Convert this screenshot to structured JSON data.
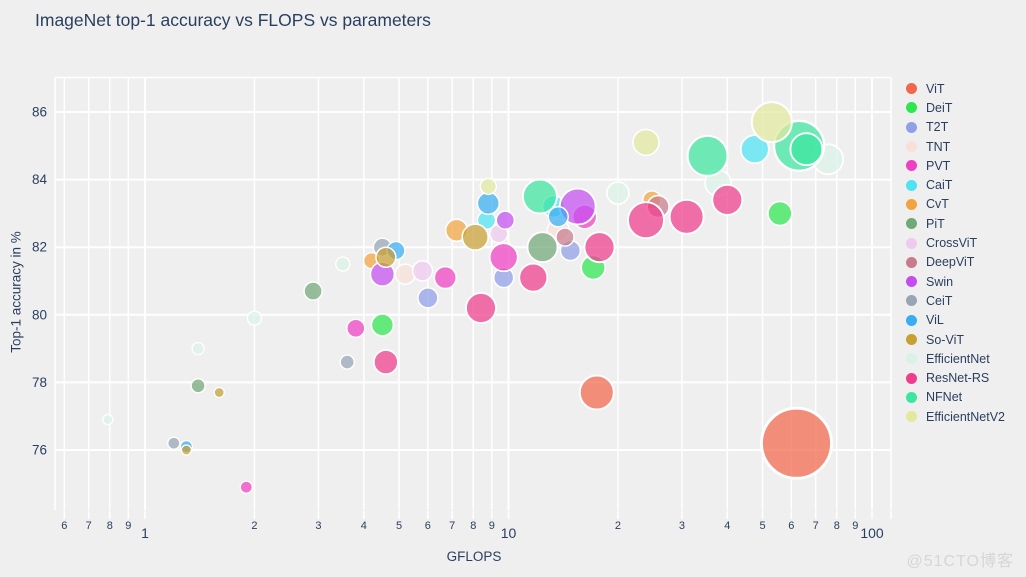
{
  "watermark": {
    "text": "@51CTO博客"
  },
  "chart_data": {
    "type": "scatter",
    "subtype": "bubble",
    "title": "ImageNet top-1 accuracy vs FLOPS vs parameters",
    "xlabel": "GFLOPS",
    "ylabel": "Top-1 accuracy in %",
    "x_scale": "log",
    "grid": true,
    "legend_position": "right",
    "x_tick_values": [
      0.6,
      0.7,
      0.8,
      0.9,
      1,
      2,
      3,
      4,
      5,
      6,
      7,
      8,
      9,
      10,
      20,
      30,
      40,
      50,
      60,
      70,
      80,
      90,
      100
    ],
    "x_tick_labels": [
      "6",
      "7",
      "8",
      "9",
      "1",
      "2",
      "3",
      "4",
      "5",
      "6",
      "7",
      "8",
      "9",
      "10",
      "2",
      "3",
      "4",
      "5",
      "6",
      "7",
      "8",
      "9",
      "100"
    ],
    "x_major_values": [
      1,
      10,
      100
    ],
    "y_tick_values": [
      76,
      78,
      80,
      82,
      84,
      86
    ],
    "x_range": [
      0.56,
      110
    ],
    "y_range": [
      74.2,
      87.1
    ],
    "series": [
      {
        "name": "ViT",
        "color": "#F2664C",
        "points": [
          {
            "gflops": 17.5,
            "acc": 77.7,
            "r": 17
          },
          {
            "gflops": 62,
            "acc": 76.2,
            "r": 35
          }
        ]
      },
      {
        "name": "DeiT",
        "color": "#2EE64F",
        "points": [
          {
            "gflops": 4.5,
            "acc": 79.7,
            "r": 11
          },
          {
            "gflops": 17.1,
            "acc": 81.4,
            "r": 12
          },
          {
            "gflops": 55.8,
            "acc": 83.0,
            "r": 12
          }
        ]
      },
      {
        "name": "T2T",
        "color": "#8F9FE8",
        "points": [
          {
            "gflops": 6.0,
            "acc": 80.5,
            "r": 10
          },
          {
            "gflops": 9.7,
            "acc": 81.1,
            "r": 10
          },
          {
            "gflops": 14.8,
            "acc": 81.9,
            "r": 10
          }
        ]
      },
      {
        "name": "TNT",
        "color": "#F8E0D8",
        "points": [
          {
            "gflops": 5.2,
            "acc": 81.2,
            "r": 10
          },
          {
            "gflops": 13.7,
            "acc": 82.5,
            "r": 11
          }
        ]
      },
      {
        "name": "PVT",
        "color": "#F03FC2",
        "points": [
          {
            "gflops": 1.9,
            "acc": 74.9,
            "r": 6
          },
          {
            "gflops": 3.8,
            "acc": 79.6,
            "r": 9
          },
          {
            "gflops": 6.7,
            "acc": 81.1,
            "r": 11
          },
          {
            "gflops": 9.7,
            "acc": 81.7,
            "r": 14
          },
          {
            "gflops": 16.2,
            "acc": 82.9,
            "r": 12
          }
        ]
      },
      {
        "name": "CaiT",
        "color": "#4DE3F2",
        "points": [
          {
            "gflops": 8.7,
            "acc": 82.8,
            "r": 9
          },
          {
            "gflops": 13.3,
            "acc": 83.2,
            "r": 11
          },
          {
            "gflops": 47.6,
            "acc": 84.9,
            "r": 14
          }
        ]
      },
      {
        "name": "CvT",
        "color": "#F2A33F",
        "points": [
          {
            "gflops": 4.2,
            "acc": 81.6,
            "r": 8
          },
          {
            "gflops": 7.2,
            "acc": 82.5,
            "r": 11
          },
          {
            "gflops": 24.8,
            "acc": 83.4,
            "r": 9
          }
        ]
      },
      {
        "name": "PiT",
        "color": "#71A877",
        "points": [
          {
            "gflops": 1.4,
            "acc": 77.9,
            "r": 7
          },
          {
            "gflops": 2.9,
            "acc": 80.7,
            "r": 9
          },
          {
            "gflops": 12.4,
            "acc": 82.0,
            "r": 15
          }
        ]
      },
      {
        "name": "CrossViT",
        "color": "#EFC9EF",
        "points": [
          {
            "gflops": 5.8,
            "acc": 81.3,
            "r": 10
          },
          {
            "gflops": 9.4,
            "acc": 82.4,
            "r": 9
          }
        ]
      },
      {
        "name": "DeepViT",
        "color": "#C97A8C",
        "points": [
          {
            "gflops": 14.3,
            "acc": 82.3,
            "r": 9
          },
          {
            "gflops": 25.8,
            "acc": 83.2,
            "r": 11
          }
        ]
      },
      {
        "name": "Swin",
        "color": "#C44DF0",
        "points": [
          {
            "gflops": 4.5,
            "acc": 81.2,
            "r": 12
          },
          {
            "gflops": 9.8,
            "acc": 82.8,
            "r": 9
          },
          {
            "gflops": 15.5,
            "acc": 83.2,
            "r": 18
          }
        ]
      },
      {
        "name": "CeiT",
        "color": "#97A5B5",
        "points": [
          {
            "gflops": 1.2,
            "acc": 76.2,
            "r": 6
          },
          {
            "gflops": 3.6,
            "acc": 78.6,
            "r": 7
          },
          {
            "gflops": 4.5,
            "acc": 82.0,
            "r": 9
          }
        ]
      },
      {
        "name": "ViL",
        "color": "#38ADF2",
        "points": [
          {
            "gflops": 1.3,
            "acc": 76.1,
            "r": 6
          },
          {
            "gflops": 4.9,
            "acc": 81.9,
            "r": 9
          },
          {
            "gflops": 8.8,
            "acc": 83.3,
            "r": 11
          },
          {
            "gflops": 13.7,
            "acc": 82.9,
            "r": 10
          }
        ]
      },
      {
        "name": "So-ViT",
        "color": "#C7A032",
        "points": [
          {
            "gflops": 1.3,
            "acc": 76.0,
            "r": 5
          },
          {
            "gflops": 1.6,
            "acc": 77.7,
            "r": 5
          },
          {
            "gflops": 4.6,
            "acc": 81.7,
            "r": 10
          },
          {
            "gflops": 8.1,
            "acc": 82.3,
            "r": 13
          }
        ]
      },
      {
        "name": "EfficientNet",
        "color": "#D9F2E6",
        "points": [
          {
            "gflops": 0.79,
            "acc": 76.9,
            "r": 5
          },
          {
            "gflops": 1.4,
            "acc": 79.0,
            "r": 6
          },
          {
            "gflops": 2.0,
            "acc": 79.9,
            "r": 7
          },
          {
            "gflops": 3.5,
            "acc": 81.5,
            "r": 7
          },
          {
            "gflops": 20,
            "acc": 83.6,
            "r": 11
          },
          {
            "gflops": 37.7,
            "acc": 83.9,
            "r": 13
          },
          {
            "gflops": 75.7,
            "acc": 84.6,
            "r": 15
          }
        ]
      },
      {
        "name": "ResNet-RS",
        "color": "#F03C8C",
        "points": [
          {
            "gflops": 4.6,
            "acc": 78.6,
            "r": 12
          },
          {
            "gflops": 8.4,
            "acc": 80.2,
            "r": 15
          },
          {
            "gflops": 11.7,
            "acc": 81.1,
            "r": 14
          },
          {
            "gflops": 17.8,
            "acc": 82.0,
            "r": 15
          },
          {
            "gflops": 23.9,
            "acc": 82.8,
            "r": 18
          },
          {
            "gflops": 30.9,
            "acc": 82.9,
            "r": 17
          },
          {
            "gflops": 40,
            "acc": 83.4,
            "r": 15
          }
        ]
      },
      {
        "name": "NFNet",
        "color": "#3BE6A0",
        "points": [
          {
            "gflops": 12.2,
            "acc": 83.5,
            "r": 17
          },
          {
            "gflops": 35.3,
            "acc": 84.7,
            "r": 20
          },
          {
            "gflops": 63,
            "acc": 85.0,
            "r": 25
          },
          {
            "gflops": 66,
            "acc": 84.9,
            "r": 16
          }
        ]
      },
      {
        "name": "EfficientNetV2",
        "color": "#E2E89C",
        "points": [
          {
            "gflops": 8.8,
            "acc": 83.8,
            "r": 8
          },
          {
            "gflops": 23.9,
            "acc": 85.1,
            "r": 13
          },
          {
            "gflops": 53,
            "acc": 85.7,
            "r": 20
          }
        ]
      }
    ]
  }
}
